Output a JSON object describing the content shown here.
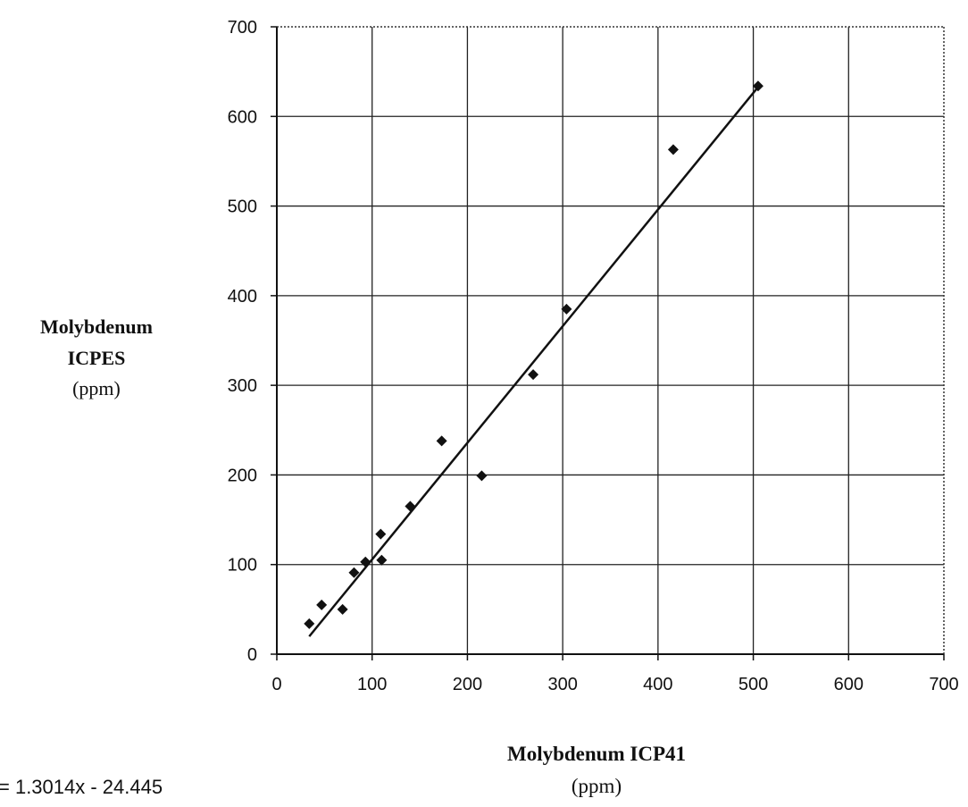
{
  "chart_data": {
    "type": "scatter",
    "xlabel": "Molybdenum ICP41",
    "xunit": "(ppm)",
    "ylabel_lines": [
      "Molybdenum",
      "ICPES"
    ],
    "yunit": "(ppm)",
    "xlim": [
      0,
      700
    ],
    "ylim": [
      0,
      700
    ],
    "xticks": [
      0,
      100,
      200,
      300,
      400,
      500,
      600,
      700
    ],
    "yticks": [
      0,
      100,
      200,
      300,
      400,
      500,
      600,
      700
    ],
    "grid": true,
    "legend": "none",
    "points": [
      {
        "x": 34,
        "y": 34
      },
      {
        "x": 47,
        "y": 55
      },
      {
        "x": 69,
        "y": 50
      },
      {
        "x": 81,
        "y": 91
      },
      {
        "x": 93,
        "y": 103
      },
      {
        "x": 109,
        "y": 134
      },
      {
        "x": 110,
        "y": 105
      },
      {
        "x": 140,
        "y": 165
      },
      {
        "x": 173,
        "y": 238
      },
      {
        "x": 215,
        "y": 199
      },
      {
        "x": 269,
        "y": 312
      },
      {
        "x": 304,
        "y": 385
      },
      {
        "x": 416,
        "y": 563
      },
      {
        "x": 505,
        "y": 634
      }
    ],
    "trendline": {
      "slope": 1.3014,
      "intercept": -24.445,
      "x_range": [
        34,
        505
      ]
    },
    "equation_text": "= 1.3014x - 24.445"
  }
}
